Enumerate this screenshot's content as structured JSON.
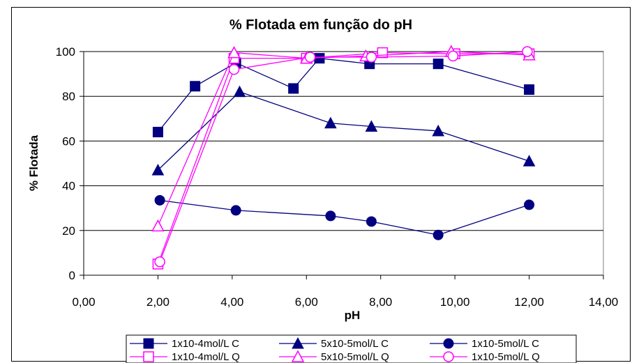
{
  "chart_data": {
    "type": "scatter",
    "title": "% Flotada em função do pH",
    "xlabel": "pH",
    "ylabel": "% Flotada",
    "xlim": [
      0,
      14
    ],
    "ylim": [
      0,
      100
    ],
    "x_ticks": [
      "0,00",
      "2,00",
      "4,00",
      "6,00",
      "8,00",
      "10,00",
      "12,00",
      "14,00"
    ],
    "y_ticks": [
      "0",
      "20",
      "40",
      "60",
      "80",
      "100"
    ],
    "grid": "horizontal",
    "legend_position": "bottom",
    "series": [
      {
        "name": "1x10-4mol/L C",
        "color": "#000080",
        "marker": "square",
        "filled": true,
        "x": [
          2.0,
          3.0,
          4.1,
          5.65,
          6.35,
          7.7,
          9.55,
          12.0
        ],
        "y": [
          64,
          84.5,
          95,
          83.5,
          97,
          94.5,
          94.5,
          83
        ]
      },
      {
        "name": "5x10-5mol/L C",
        "color": "#000080",
        "marker": "triangle",
        "filled": true,
        "x": [
          2.0,
          4.2,
          6.65,
          7.75,
          9.55,
          12.0
        ],
        "y": [
          47,
          82,
          68,
          66.5,
          64.5,
          51
        ]
      },
      {
        "name": "1x10-5mol/L C",
        "color": "#000080",
        "marker": "circle",
        "filled": true,
        "x": [
          2.05,
          4.1,
          6.65,
          7.75,
          9.55,
          12.0
        ],
        "y": [
          33.5,
          29,
          26.5,
          24,
          18,
          31.5
        ]
      },
      {
        "name": "1x10-4mol/L Q",
        "color": "#FF00FF",
        "marker": "square",
        "filled": false,
        "x": [
          2.0,
          4.05,
          6.0,
          8.05,
          10.0,
          12.0
        ],
        "y": [
          5,
          97,
          97,
          99.5,
          99,
          99
        ]
      },
      {
        "name": "5x10-5mol/L Q",
        "color": "#FF00FF",
        "marker": "triangle",
        "filled": false,
        "x": [
          2.0,
          4.05,
          6.0,
          7.6,
          9.9,
          12.0
        ],
        "y": [
          22,
          99.5,
          97,
          98,
          100,
          98.5
        ]
      },
      {
        "name": "1x10-5mol/L Q",
        "color": "#FF00FF",
        "marker": "circle",
        "filled": false,
        "x": [
          2.05,
          4.05,
          6.1,
          7.75,
          9.95,
          11.95
        ],
        "y": [
          6,
          92,
          97.5,
          97.5,
          98,
          100
        ]
      }
    ]
  }
}
